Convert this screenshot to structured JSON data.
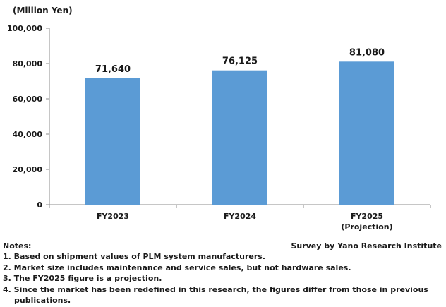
{
  "unit_label": "(Million Yen)",
  "chart_data": {
    "type": "bar",
    "categories": [
      "FY2023",
      "FY2024",
      "FY2025"
    ],
    "category_sublabels": [
      "",
      "",
      "(Projection)"
    ],
    "values": [
      71640,
      76125,
      81080
    ],
    "data_labels": [
      "71,640",
      "76,125",
      "81,080"
    ],
    "ylim": [
      0,
      100000
    ],
    "yticks": [
      0,
      20000,
      40000,
      60000,
      80000,
      100000
    ],
    "ytick_labels": [
      "0",
      "20,000",
      "40,000",
      "60,000",
      "80,000",
      "100,000"
    ],
    "bar_color": "#5b9bd5",
    "grid": false,
    "xlabel": "",
    "ylabel": ""
  },
  "notes": {
    "heading": "Notes:",
    "lines": [
      "1. Based on shipment values of PLM system manufacturers.",
      "2. Market size includes maintenance and service sales, but not hardware sales.",
      "3. The FY2025 figure is a projection.",
      "4. Since the market has been redefined in this research, the figures differ from those in previous",
      "publications."
    ]
  },
  "source": "Survey by Yano Research Institute"
}
